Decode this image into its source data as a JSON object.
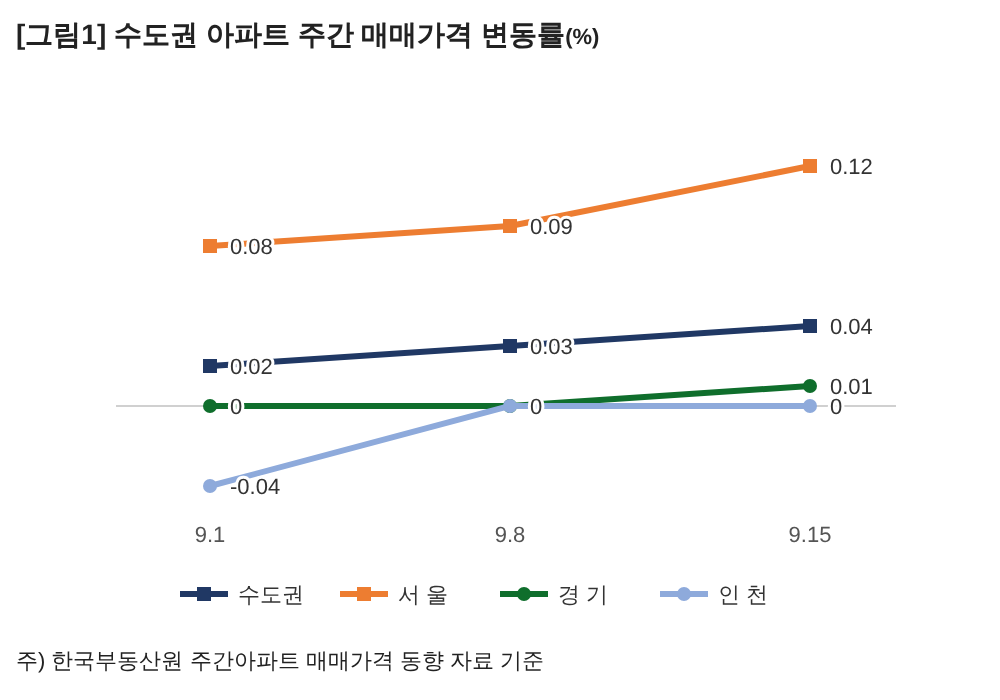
{
  "chart_data": {
    "type": "line",
    "title": "[그림1] 수도권 아파트 주간 매매가격 변동률(%)",
    "categories": [
      "9.1",
      "9.8",
      "9.15"
    ],
    "series": [
      {
        "name": "수도권",
        "color": "#203864",
        "marker": "square",
        "values": [
          0.02,
          0.03,
          0.04
        ],
        "value_labels": [
          "0.02",
          "0.03",
          "0.04"
        ]
      },
      {
        "name": "서 울",
        "color": "#ed7d31",
        "marker": "square",
        "values": [
          0.08,
          0.09,
          0.12
        ],
        "value_labels": [
          "0.08",
          "0.09",
          "0.12"
        ]
      },
      {
        "name": "경 기",
        "color": "#0f6e2c",
        "marker": "circle",
        "values": [
          0,
          0,
          0.01
        ],
        "value_labels": [
          "0",
          "0",
          "0.01"
        ]
      },
      {
        "name": "인 천",
        "color": "#8eaadb",
        "marker": "circle",
        "values": [
          -0.04,
          0,
          0
        ],
        "value_labels": [
          "-0.04",
          null,
          "0"
        ]
      }
    ],
    "legend": "bottom",
    "annotations": [
      "주) 한국부동산원 주간아파트 매매가격 동향 자료 기준"
    ]
  }
}
